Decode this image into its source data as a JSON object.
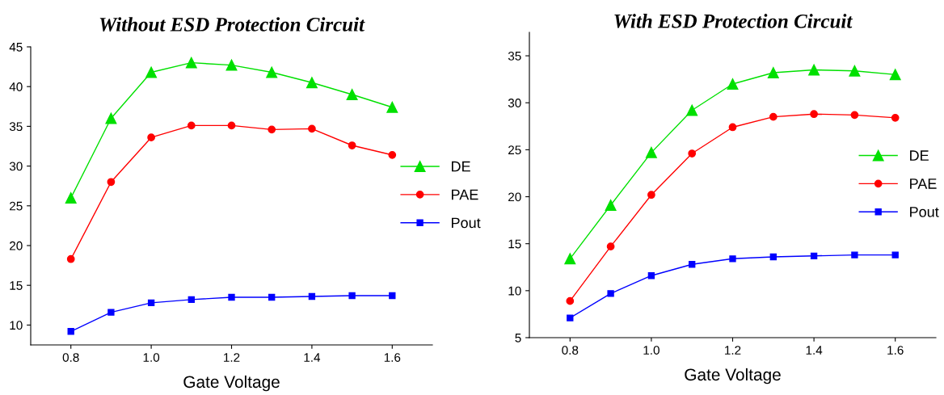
{
  "chart_data": [
    {
      "type": "line",
      "title": "Without ESD Protection Circuit",
      "xlabel": "Gate Voltage",
      "x": [
        0.8,
        0.9,
        1.0,
        1.1,
        1.2,
        1.3,
        1.4,
        1.5,
        1.6
      ],
      "xlim": [
        0.7,
        1.7
      ],
      "xticks": [
        {
          "value": 0.8,
          "label": "0.8"
        },
        {
          "value": 1.0,
          "label": "1.0"
        },
        {
          "value": 1.2,
          "label": "1.2"
        },
        {
          "value": 1.4,
          "label": "1.4"
        },
        {
          "value": 1.6,
          "label": "1.6"
        }
      ],
      "ylim": [
        7.5,
        45
      ],
      "yticks": [
        10,
        15,
        20,
        25,
        30,
        35,
        40,
        45
      ],
      "grid": false,
      "legend": "right",
      "line_style": "solid",
      "series": [
        {
          "name": "DE",
          "color": "#00e000",
          "marker": "triangle",
          "values": [
            26,
            36,
            41.8,
            43,
            42.7,
            41.8,
            40.5,
            39,
            37.4
          ]
        },
        {
          "name": "PAE",
          "color": "#ff0000",
          "marker": "circle",
          "values": [
            18.3,
            28,
            33.6,
            35.1,
            35.1,
            34.6,
            34.7,
            32.6,
            31.4
          ]
        },
        {
          "name": "Pout",
          "color": "#0000ff",
          "marker": "square",
          "values": [
            9.2,
            11.6,
            12.8,
            13.2,
            13.5,
            13.5,
            13.6,
            13.7,
            13.7
          ]
        }
      ]
    },
    {
      "type": "line",
      "title": "With ESD Protection Circuit",
      "xlabel": "Gate Voltage",
      "x": [
        0.8,
        0.9,
        1.0,
        1.1,
        1.2,
        1.3,
        1.4,
        1.5,
        1.6
      ],
      "xlim": [
        0.7,
        1.7
      ],
      "xticks": [
        {
          "value": 0.8,
          "label": "0.8"
        },
        {
          "value": 1.0,
          "label": "1.0"
        },
        {
          "value": 1.2,
          "label": "1.2"
        },
        {
          "value": 1.4,
          "label": "1.4"
        },
        {
          "value": 1.6,
          "label": "1.6"
        }
      ],
      "ylim": [
        5,
        37.5
      ],
      "yticks": [
        5,
        10,
        15,
        20,
        25,
        30,
        35
      ],
      "grid": false,
      "legend": "right",
      "line_style": "solid",
      "series": [
        {
          "name": "DE",
          "color": "#00e000",
          "marker": "triangle",
          "values": [
            13.4,
            19.1,
            24.7,
            29.2,
            32.0,
            33.2,
            33.5,
            33.4,
            33.0
          ]
        },
        {
          "name": "PAE",
          "color": "#ff0000",
          "marker": "circle",
          "values": [
            8.9,
            14.7,
            20.2,
            24.6,
            27.4,
            28.5,
            28.8,
            28.7,
            28.4
          ]
        },
        {
          "name": "Pout",
          "color": "#0000ff",
          "marker": "square",
          "values": [
            7.1,
            9.7,
            11.6,
            12.8,
            13.4,
            13.6,
            13.7,
            13.8,
            13.8
          ]
        }
      ]
    }
  ]
}
